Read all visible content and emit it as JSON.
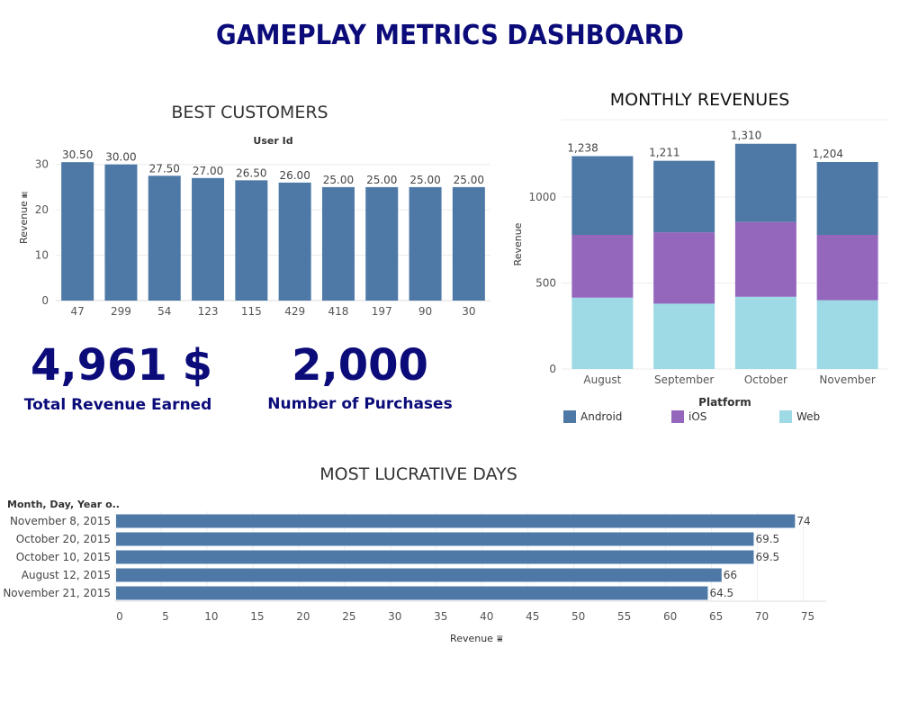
{
  "dashboard": {
    "title": "GAMEPLAY METRICS DASHBOARD",
    "kpis": {
      "total_revenue_value": "4,961 $",
      "total_revenue_label": "Total Revenue Earned",
      "purchases_value": "2,000",
      "purchases_label": "Number of Purchases"
    }
  },
  "chart_data": [
    {
      "type": "bar",
      "title": "BEST CUSTOMERS",
      "column_header": "User Id",
      "ylabel": "Revenue",
      "categories": [
        "47",
        "299",
        "54",
        "123",
        "115",
        "429",
        "418",
        "197",
        "90",
        "30"
      ],
      "values": [
        30.5,
        30.0,
        27.5,
        27.0,
        26.5,
        26.0,
        25.0,
        25.0,
        25.0,
        25.0
      ],
      "data_labels": [
        "30.50",
        "30.00",
        "27.50",
        "27.00",
        "26.50",
        "26.00",
        "25.00",
        "25.00",
        "25.00",
        "25.00"
      ],
      "yticks": [
        0,
        10,
        20,
        30
      ],
      "ylim": [
        0,
        34.5
      ],
      "color": "#4e79a7",
      "grid": true
    },
    {
      "type": "bar",
      "stacked": true,
      "title": "MONTHLY REVENUES",
      "ylabel": "Revenue",
      "legend_title": "Platform",
      "categories": [
        "August",
        "September",
        "October",
        "November"
      ],
      "series": [
        {
          "name": "Web",
          "values": [
            415,
            380,
            420,
            400
          ],
          "color": "#9edae5"
        },
        {
          "name": "iOS",
          "values": [
            365,
            415,
            435,
            380
          ],
          "color": "#9467bd"
        },
        {
          "name": "Android",
          "values": [
            458,
            416,
            455,
            424
          ],
          "color": "#4e79a7"
        }
      ],
      "totals": [
        "1,238",
        "1,211",
        "1,310",
        "1,204"
      ],
      "yticks": [
        0,
        500,
        1000
      ],
      "ylim": [
        0,
        1450
      ],
      "legend": [
        {
          "name": "Android",
          "color": "#4e79a7"
        },
        {
          "name": "iOS",
          "color": "#9467bd"
        },
        {
          "name": "Web",
          "color": "#9edae5"
        }
      ],
      "legend_position": "bottom"
    },
    {
      "type": "bar",
      "orientation": "horizontal",
      "title": "MOST LUCRATIVE DAYS",
      "row_header": "Month, Day, Year o..",
      "xlabel": "Revenue",
      "categories": [
        "November 8, 2015",
        "October 20, 2015",
        "October 10, 2015",
        "August 12, 2015",
        "November 21, 2015"
      ],
      "values": [
        74,
        69.5,
        69.5,
        66,
        64.5
      ],
      "data_labels": [
        "74",
        "69.5",
        "69.5",
        "66",
        "64.5"
      ],
      "xticks": [
        0,
        5,
        10,
        15,
        20,
        25,
        30,
        35,
        40,
        45,
        50,
        55,
        60,
        65,
        70,
        75
      ],
      "xlim": [
        0,
        77.5
      ],
      "color": "#4e79a7",
      "grid": true
    }
  ]
}
